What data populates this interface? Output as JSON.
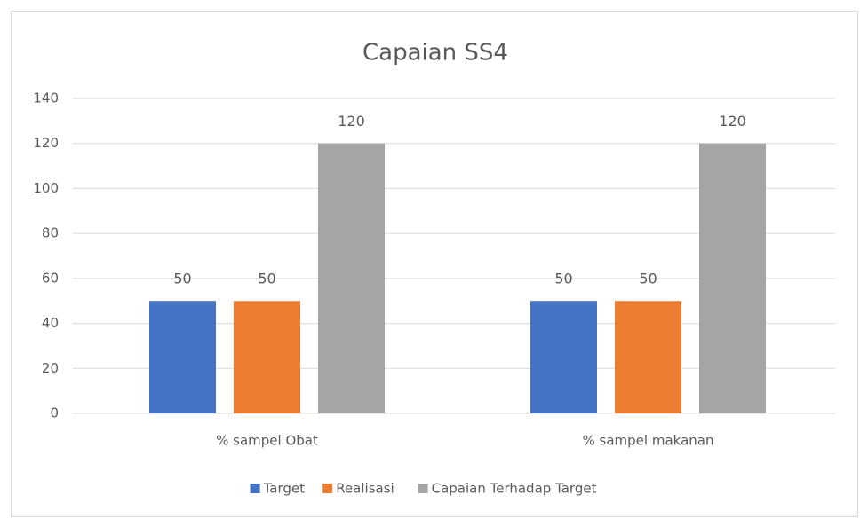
{
  "chart_data": {
    "type": "bar",
    "title": "Capaian SS4",
    "categories": [
      "% sampel Obat",
      "% sampel makanan"
    ],
    "series": [
      {
        "name": "Target",
        "color": "#4472c4",
        "values": [
          50,
          50
        ]
      },
      {
        "name": "Realisasi",
        "color": "#ed7d31",
        "values": [
          50,
          50
        ]
      },
      {
        "name": "Capaian Terhadap Target",
        "color": "#a5a5a5",
        "values": [
          120,
          120
        ]
      }
    ],
    "ylim": [
      0,
      140
    ],
    "yticks": [
      0,
      20,
      40,
      60,
      80,
      100,
      120,
      140
    ],
    "grid": true,
    "legend": "bottom"
  }
}
